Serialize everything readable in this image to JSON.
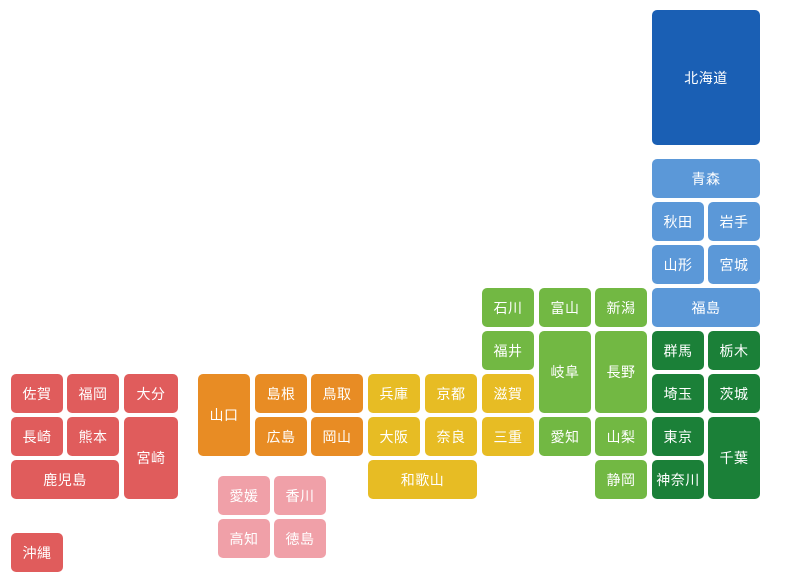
{
  "regions": {
    "hokkaido": {
      "color": "#1a5fb4"
    },
    "tohoku": {
      "color": "#5b98d8"
    },
    "kanto": {
      "color": "#1b8038"
    },
    "chubu": {
      "color": "#72b843"
    },
    "kinki": {
      "color": "#e7bc24"
    },
    "chugoku": {
      "color": "#e88c24"
    },
    "shikoku": {
      "color": "#f0a0a8"
    },
    "kyushu": {
      "color": "#e05c5c"
    }
  },
  "prefectures": [
    {
      "id": "hokkaido",
      "label": "北海道",
      "region": "hokkaido"
    },
    {
      "id": "aomori",
      "label": "青森",
      "region": "tohoku"
    },
    {
      "id": "akita",
      "label": "秋田",
      "region": "tohoku"
    },
    {
      "id": "iwate",
      "label": "岩手",
      "region": "tohoku"
    },
    {
      "id": "yamagata",
      "label": "山形",
      "region": "tohoku"
    },
    {
      "id": "miyagi",
      "label": "宮城",
      "region": "tohoku"
    },
    {
      "id": "fukushima",
      "label": "福島",
      "region": "tohoku"
    },
    {
      "id": "gunma",
      "label": "群馬",
      "region": "kanto"
    },
    {
      "id": "tochigi",
      "label": "栃木",
      "region": "kanto"
    },
    {
      "id": "saitama",
      "label": "埼玉",
      "region": "kanto"
    },
    {
      "id": "ibaraki",
      "label": "茨城",
      "region": "kanto"
    },
    {
      "id": "tokyo",
      "label": "東京",
      "region": "kanto"
    },
    {
      "id": "kanagawa",
      "label": "神奈川",
      "region": "kanto"
    },
    {
      "id": "chiba",
      "label": "千葉",
      "region": "kanto"
    },
    {
      "id": "ishikawa",
      "label": "石川",
      "region": "chubu"
    },
    {
      "id": "toyama",
      "label": "富山",
      "region": "chubu"
    },
    {
      "id": "niigata",
      "label": "新潟",
      "region": "chubu"
    },
    {
      "id": "fukui",
      "label": "福井",
      "region": "chubu"
    },
    {
      "id": "gifu",
      "label": "岐阜",
      "region": "chubu"
    },
    {
      "id": "nagano",
      "label": "長野",
      "region": "chubu"
    },
    {
      "id": "aichi",
      "label": "愛知",
      "region": "chubu"
    },
    {
      "id": "yamanashi",
      "label": "山梨",
      "region": "chubu"
    },
    {
      "id": "shizuoka",
      "label": "静岡",
      "region": "chubu"
    },
    {
      "id": "shiga",
      "label": "滋賀",
      "region": "kinki"
    },
    {
      "id": "mie",
      "label": "三重",
      "region": "kinki"
    },
    {
      "id": "hyogo",
      "label": "兵庫",
      "region": "kinki"
    },
    {
      "id": "kyoto",
      "label": "京都",
      "region": "kinki"
    },
    {
      "id": "osaka",
      "label": "大阪",
      "region": "kinki"
    },
    {
      "id": "nara",
      "label": "奈良",
      "region": "kinki"
    },
    {
      "id": "wakayama",
      "label": "和歌山",
      "region": "kinki"
    },
    {
      "id": "shimane",
      "label": "島根",
      "region": "chugoku"
    },
    {
      "id": "tottori",
      "label": "鳥取",
      "region": "chugoku"
    },
    {
      "id": "yamaguchi",
      "label": "山口",
      "region": "chugoku"
    },
    {
      "id": "hiroshima",
      "label": "広島",
      "region": "chugoku"
    },
    {
      "id": "okayama",
      "label": "岡山",
      "region": "chugoku"
    },
    {
      "id": "ehime",
      "label": "愛媛",
      "region": "shikoku"
    },
    {
      "id": "kagawa",
      "label": "香川",
      "region": "shikoku"
    },
    {
      "id": "kochi",
      "label": "高知",
      "region": "shikoku"
    },
    {
      "id": "tokushima",
      "label": "徳島",
      "region": "shikoku"
    },
    {
      "id": "saga",
      "label": "佐賀",
      "region": "kyushu"
    },
    {
      "id": "fukuoka",
      "label": "福岡",
      "region": "kyushu"
    },
    {
      "id": "oita",
      "label": "大分",
      "region": "kyushu"
    },
    {
      "id": "nagasaki",
      "label": "長崎",
      "region": "kyushu"
    },
    {
      "id": "kumamoto",
      "label": "熊本",
      "region": "kyushu"
    },
    {
      "id": "miyazaki",
      "label": "宮崎",
      "region": "kyushu"
    },
    {
      "id": "kagoshima",
      "label": "鹿児島",
      "region": "kyushu"
    },
    {
      "id": "okinawa",
      "label": "沖縄",
      "region": "kyushu"
    }
  ]
}
